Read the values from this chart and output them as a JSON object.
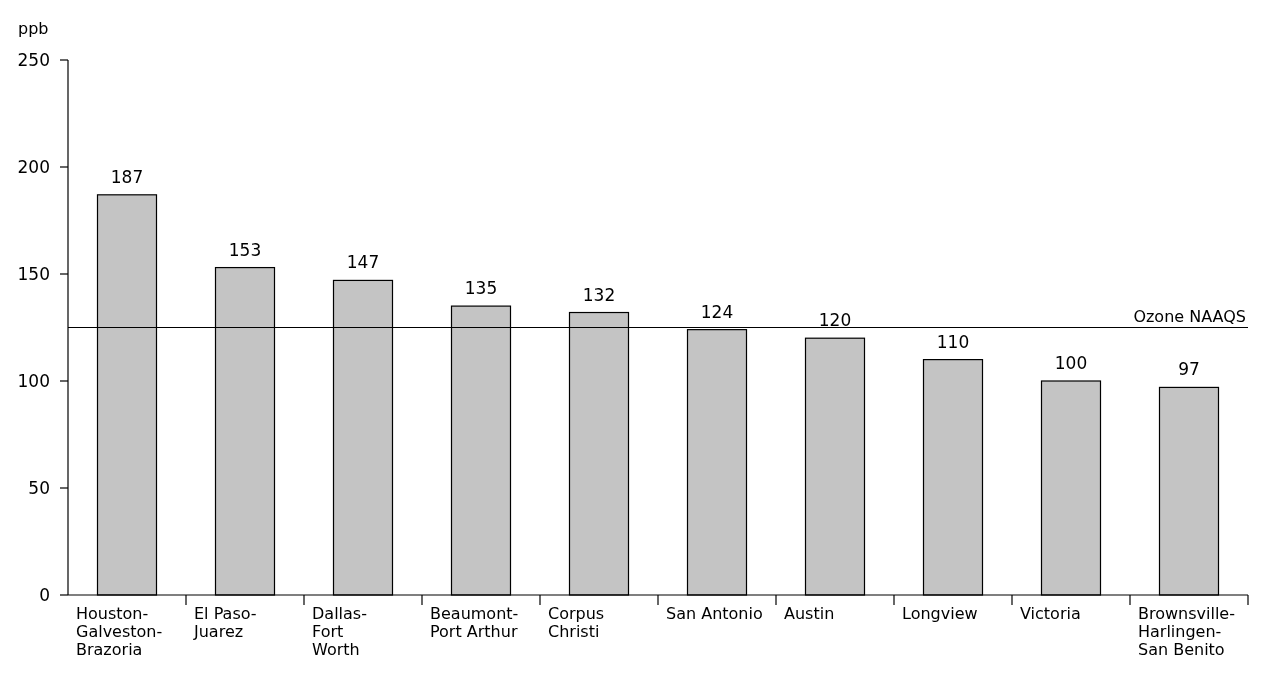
{
  "chart_data": {
    "type": "bar",
    "ylabel": "ppb",
    "categories": [
      "Houston-\nGalveston-\nBrazoria",
      "El Paso-\nJuarez",
      "Dallas-\nFort\nWorth",
      "Beaumont-\nPort Arthur",
      "Corpus\nChristi",
      "San Antonio",
      "Austin",
      "Longview",
      "Victoria",
      "Brownsville-\nHarlingen-\nSan Benito"
    ],
    "values": [
      187,
      153,
      147,
      135,
      132,
      124,
      120,
      110,
      100,
      97
    ],
    "color": "#c4c4c4",
    "ylim": [
      0,
      250
    ],
    "yticks": [
      0,
      50,
      100,
      150,
      200,
      250
    ],
    "data_labels": true,
    "grid": false,
    "ref_lines": [
      {
        "axis": "y",
        "value": 125,
        "label": "Ozone NAAQS",
        "color": "#000000"
      }
    ]
  }
}
